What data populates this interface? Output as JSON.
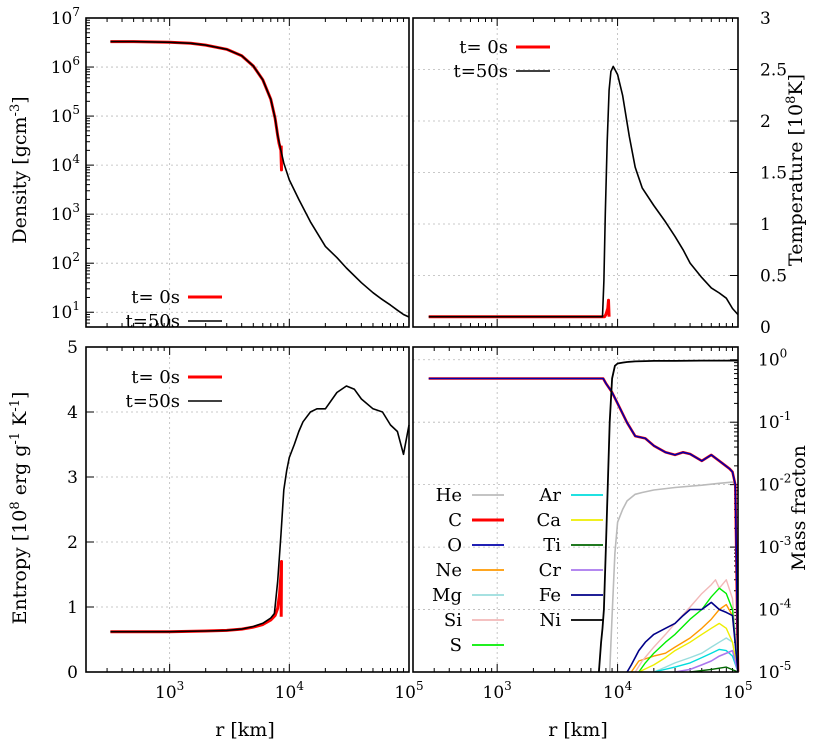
{
  "chart_data": [
    {
      "id": "density",
      "type": "line",
      "xlabel": "",
      "ylabel": "Density [gcm^-3]",
      "xscale": "log",
      "yscale": "log",
      "xlim": [
        200,
        100000
      ],
      "ylim": [
        5,
        10000000
      ],
      "x_ticks": [],
      "y_ticks": [
        {
          "value": 10,
          "base": "10",
          "exp": "1"
        },
        {
          "value": 100,
          "base": "10",
          "exp": "2"
        },
        {
          "value": 1000,
          "base": "10",
          "exp": "3"
        },
        {
          "value": 10000,
          "base": "10",
          "exp": "4"
        },
        {
          "value": 100000,
          "base": "10",
          "exp": "5"
        },
        {
          "value": 1000000,
          "base": "10",
          "exp": "6"
        },
        {
          "value": 10000000,
          "base": "10",
          "exp": "7"
        }
      ],
      "grid": true,
      "legend_position": "bottom-left",
      "series": [
        {
          "name": "t= 0s",
          "color": "#ff0000",
          "width": 3,
          "x": [
            320,
            500,
            1000,
            1500,
            2000,
            3000,
            4000,
            5000,
            6000,
            7000,
            7600,
            8000,
            8200,
            8400,
            8500,
            8600,
            8550
          ],
          "y": [
            3300000,
            3300000,
            3200000,
            3050000,
            2800000,
            2300000,
            1700000,
            1050000,
            550000,
            220000,
            90000,
            40000,
            28000,
            22000,
            20000,
            8000,
            25000
          ]
        },
        {
          "name": "t=50s",
          "color": "#000000",
          "width": 1.6,
          "x": [
            320,
            500,
            1000,
            1500,
            2000,
            3000,
            4000,
            5000,
            6000,
            7000,
            7600,
            8000,
            8500,
            9000,
            10000,
            12000,
            15000,
            20000,
            25000,
            30000,
            40000,
            50000,
            60000,
            70000,
            80000,
            90000,
            100000
          ],
          "y": [
            3300000,
            3300000,
            3200000,
            3050000,
            2800000,
            2300000,
            1700000,
            1050000,
            550000,
            220000,
            90000,
            40000,
            20000,
            11000,
            5000,
            2000,
            700,
            220,
            130,
            80,
            40,
            25,
            18,
            14,
            11,
            9,
            8
          ]
        }
      ]
    },
    {
      "id": "temperature",
      "type": "line",
      "xlabel": "",
      "ylabel": "Temperature [10^8 K]",
      "xscale": "log",
      "yscale": "linear",
      "xlim": [
        200,
        100000
      ],
      "ylim": [
        0,
        3
      ],
      "x_ticks": [],
      "y_ticks": [
        {
          "value": 0,
          "label": "0"
        },
        {
          "value": 0.5,
          "label": "0.5"
        },
        {
          "value": 1,
          "label": "1"
        },
        {
          "value": 1.5,
          "label": "1.5"
        },
        {
          "value": 2,
          "label": "2"
        },
        {
          "value": 2.5,
          "label": "2.5"
        },
        {
          "value": 3,
          "label": "3"
        }
      ],
      "grid": true,
      "legend_position": "top-left",
      "series": [
        {
          "name": "t= 0s",
          "color": "#ff0000",
          "width": 3,
          "x": [
            270,
            1000,
            5000,
            7800,
            8000,
            8300,
            8400,
            8500
          ],
          "y": [
            0.1,
            0.1,
            0.1,
            0.1,
            0.12,
            0.18,
            0.26,
            0.1
          ]
        },
        {
          "name": "t=50s",
          "color": "#000000",
          "width": 1.6,
          "x": [
            270,
            1000,
            5000,
            7000,
            7500,
            7700,
            7900,
            8200,
            8500,
            8800,
            9200,
            9500,
            10000,
            11000,
            12500,
            14000,
            16000,
            20000,
            25000,
            30000,
            35000,
            40000,
            50000,
            60000,
            70000,
            80000,
            90000,
            100000
          ],
          "y": [
            0.1,
            0.1,
            0.1,
            0.1,
            0.1,
            0.45,
            1.1,
            1.8,
            2.3,
            2.48,
            2.53,
            2.5,
            2.45,
            2.25,
            1.85,
            1.55,
            1.35,
            1.18,
            1.02,
            0.88,
            0.75,
            0.62,
            0.48,
            0.38,
            0.33,
            0.28,
            0.18,
            0.12
          ]
        }
      ]
    },
    {
      "id": "entropy",
      "type": "line",
      "xlabel": "r [km]",
      "ylabel": "Entropy [10^8 erg g^-1 K^-1]",
      "xscale": "log",
      "yscale": "linear",
      "xlim": [
        200,
        100000
      ],
      "ylim": [
        0,
        5
      ],
      "x_ticks": [
        {
          "value": 1000,
          "base": "10",
          "exp": "3"
        },
        {
          "value": 10000,
          "base": "10",
          "exp": "4"
        },
        {
          "value": 100000,
          "base": "10",
          "exp": "5"
        }
      ],
      "y_ticks": [
        {
          "value": 0,
          "label": "0"
        },
        {
          "value": 1,
          "label": "1"
        },
        {
          "value": 2,
          "label": "2"
        },
        {
          "value": 3,
          "label": "3"
        },
        {
          "value": 4,
          "label": "4"
        },
        {
          "value": 5,
          "label": "5"
        }
      ],
      "grid": true,
      "legend_position": "top-left",
      "series": [
        {
          "name": "t= 0s",
          "color": "#ff0000",
          "width": 3,
          "x": [
            320,
            1000,
            2000,
            3000,
            4000,
            5000,
            6000,
            7000,
            7600,
            8000,
            8300,
            8500,
            8600,
            8550
          ],
          "y": [
            0.62,
            0.62,
            0.63,
            0.64,
            0.66,
            0.69,
            0.73,
            0.8,
            0.87,
            0.98,
            1.2,
            1.5,
            1.7,
            0.85
          ]
        },
        {
          "name": "t=50s",
          "color": "#000000",
          "width": 1.6,
          "x": [
            320,
            1000,
            2000,
            3000,
            4000,
            5000,
            6000,
            7000,
            7500,
            8000,
            8500,
            9000,
            9500,
            10000,
            11000,
            12000,
            13000,
            15000,
            17000,
            20000,
            25000,
            30000,
            35000,
            40000,
            50000,
            60000,
            70000,
            80000,
            90000,
            100000
          ],
          "y": [
            0.62,
            0.62,
            0.63,
            0.64,
            0.66,
            0.7,
            0.75,
            0.83,
            0.9,
            1.4,
            2.1,
            2.8,
            3.1,
            3.3,
            3.5,
            3.7,
            3.85,
            4.0,
            4.05,
            4.05,
            4.3,
            4.4,
            4.35,
            4.2,
            4.05,
            4.0,
            3.8,
            3.7,
            3.35,
            3.8
          ]
        }
      ]
    },
    {
      "id": "mass-fraction",
      "type": "line",
      "xlabel": "r [km]",
      "ylabel": "Mass fracton",
      "xscale": "log",
      "yscale": "log",
      "xlim": [
        200,
        100000
      ],
      "ylim": [
        1e-05,
        1.6
      ],
      "x_ticks": [
        {
          "value": 1000,
          "base": "10",
          "exp": "3"
        },
        {
          "value": 10000,
          "base": "10",
          "exp": "4"
        },
        {
          "value": 100000,
          "base": "10",
          "exp": "5"
        }
      ],
      "y_ticks": [
        {
          "value": 1e-05,
          "base": "10",
          "exp": "-5"
        },
        {
          "value": 0.0001,
          "base": "10",
          "exp": "-4"
        },
        {
          "value": 0.001,
          "base": "10",
          "exp": "-3"
        },
        {
          "value": 0.01,
          "base": "10",
          "exp": "-2"
        },
        {
          "value": 0.1,
          "base": "10",
          "exp": "-1"
        },
        {
          "value": 1,
          "base": "10",
          "exp": "0"
        }
      ],
      "grid": true,
      "legend_position": "bottom-left",
      "series": [
        {
          "name": "He",
          "color": "#bbbbbb",
          "width": 1.6,
          "x": [
            8600,
            9000,
            9500,
            10000,
            11000,
            12000,
            14000,
            16000,
            20000,
            30000,
            50000,
            70000,
            90000,
            95000,
            100000
          ],
          "y": [
            1e-05,
            8e-05,
            0.0008,
            0.0025,
            0.004,
            0.0055,
            0.007,
            0.0075,
            0.0082,
            0.009,
            0.0098,
            0.0105,
            0.011,
            0.01,
            1e-05
          ]
        },
        {
          "name": "C",
          "color": "#ff0000",
          "width": 2.6,
          "x": [
            270,
            1000,
            5000,
            7000,
            7600,
            8000,
            9000,
            10000,
            12000,
            14000,
            17000,
            20000,
            25000,
            30000,
            35000,
            40000,
            50000,
            60000,
            70000,
            85000,
            90000,
            95000,
            100000
          ],
          "y": [
            0.5,
            0.5,
            0.5,
            0.5,
            0.5,
            0.42,
            0.3,
            0.2,
            0.098,
            0.06,
            0.055,
            0.042,
            0.033,
            0.03,
            0.033,
            0.031,
            0.024,
            0.03,
            0.024,
            0.018,
            0.016,
            0.01,
            1e-05
          ]
        },
        {
          "name": "O",
          "color": "#0000aa",
          "width": 1.6,
          "x": [
            270,
            1000,
            5000,
            7000,
            7600,
            8000,
            9000,
            10000,
            12000,
            14000,
            17000,
            20000,
            25000,
            30000,
            35000,
            40000,
            50000,
            60000,
            70000,
            85000,
            90000,
            95000,
            100000
          ],
          "y": [
            0.5,
            0.5,
            0.5,
            0.5,
            0.5,
            0.42,
            0.3,
            0.2,
            0.098,
            0.06,
            0.055,
            0.042,
            0.033,
            0.03,
            0.033,
            0.031,
            0.024,
            0.03,
            0.024,
            0.018,
            0.016,
            0.01,
            1e-05
          ]
        },
        {
          "name": "Ne",
          "color": "#ff9900",
          "width": 1.4,
          "x": [
            13000,
            15000,
            20000,
            25000,
            30000,
            40000,
            50000,
            60000,
            70000,
            80000,
            90000,
            100000
          ],
          "y": [
            1e-05,
            1.5e-05,
            1.8e-05,
            2e-05,
            2.5e-05,
            3.5e-05,
            5e-05,
            7e-05,
            0.0001,
            0.00012,
            8e-05,
            1e-05
          ]
        },
        {
          "name": "Mg",
          "color": "#99dddd",
          "width": 1.4,
          "x": [
            20000,
            25000,
            30000,
            40000,
            50000,
            60000,
            70000,
            80000,
            90000,
            100000
          ],
          "y": [
            1e-05,
            1.2e-05,
            1.4e-05,
            1.7e-05,
            2e-05,
            2.5e-05,
            3e-05,
            3.5e-05,
            3e-05,
            1e-05
          ]
        },
        {
          "name": "Si",
          "color": "#f2b8b8",
          "width": 1.4,
          "x": [
            14000,
            16000,
            20000,
            25000,
            30000,
            40000,
            50000,
            60000,
            65000,
            70000,
            80000,
            90000,
            100000
          ],
          "y": [
            1e-05,
            1.5e-05,
            2.5e-05,
            4e-05,
            6e-05,
            0.00011,
            0.00018,
            0.00025,
            0.0003,
            0.00022,
            0.0003,
            0.00015,
            1e-05
          ]
        },
        {
          "name": "S",
          "color": "#00ee00",
          "width": 1.4,
          "x": [
            15000,
            17000,
            20000,
            25000,
            30000,
            40000,
            50000,
            60000,
            70000,
            80000,
            90000,
            100000
          ],
          "y": [
            1e-05,
            1.4e-05,
            2e-05,
            3e-05,
            4e-05,
            7e-05,
            0.0001,
            0.00016,
            0.00022,
            0.00018,
            0.0001,
            1e-05
          ]
        },
        {
          "name": "Ar",
          "color": "#00dddd",
          "width": 1.4,
          "x": [
            20000,
            30000,
            40000,
            50000,
            60000,
            70000,
            80000,
            90000,
            100000
          ],
          "y": [
            1e-05,
            1.2e-05,
            1.4e-05,
            1.7e-05,
            2e-05,
            2.3e-05,
            2.2e-05,
            1.8e-05,
            1e-05
          ]
        },
        {
          "name": "Ca",
          "color": "#eeee00",
          "width": 1.4,
          "x": [
            15000,
            20000,
            25000,
            30000,
            40000,
            50000,
            60000,
            70000,
            80000,
            90000,
            100000
          ],
          "y": [
            1e-05,
            1.3e-05,
            1.7e-05,
            2.2e-05,
            3e-05,
            4e-05,
            5e-05,
            6e-05,
            5e-05,
            3e-05,
            1e-05
          ]
        },
        {
          "name": "Ti",
          "color": "#006600",
          "width": 1.4,
          "x": [
            40000,
            60000,
            80000,
            100000
          ],
          "y": [
            1e-05,
            1.1e-05,
            1.2e-05,
            1e-05
          ]
        },
        {
          "name": "Cr",
          "color": "#aa77ee",
          "width": 1.6,
          "x": [
            30000,
            40000,
            50000,
            60000,
            70000,
            80000,
            90000,
            100000
          ],
          "y": [
            1e-05,
            1.1e-05,
            1.3e-05,
            1.5e-05,
            1.8e-05,
            2e-05,
            2.2e-05,
            1e-05
          ]
        },
        {
          "name": "Fe",
          "color": "#000088",
          "width": 1.6,
          "x": [
            12000,
            13000,
            15000,
            17000,
            20000,
            25000,
            30000,
            35000,
            40000,
            50000,
            60000,
            70000,
            80000,
            90000,
            100000
          ],
          "y": [
            1e-05,
            1.3e-05,
            2.2e-05,
            3e-05,
            4e-05,
            5e-05,
            6e-05,
            8e-05,
            0.0001,
            0.0001,
            0.00013,
            0.0001,
            9e-05,
            8e-05,
            1e-05
          ]
        },
        {
          "name": "Ni",
          "color": "#000000",
          "width": 1.8,
          "x": [
            7000,
            7300,
            7500,
            7700,
            8000,
            8300,
            8600,
            9000,
            9500,
            10000,
            11000,
            12000,
            14000,
            17000,
            20000,
            30000,
            50000,
            70000,
            100000
          ],
          "y": [
            1e-05,
            3e-05,
            5e-05,
            0.0001,
            0.001,
            0.01,
            0.1,
            0.5,
            0.8,
            0.87,
            0.9,
            0.92,
            0.94,
            0.95,
            0.96,
            0.96,
            0.97,
            0.97,
            0.97
          ]
        }
      ]
    }
  ]
}
